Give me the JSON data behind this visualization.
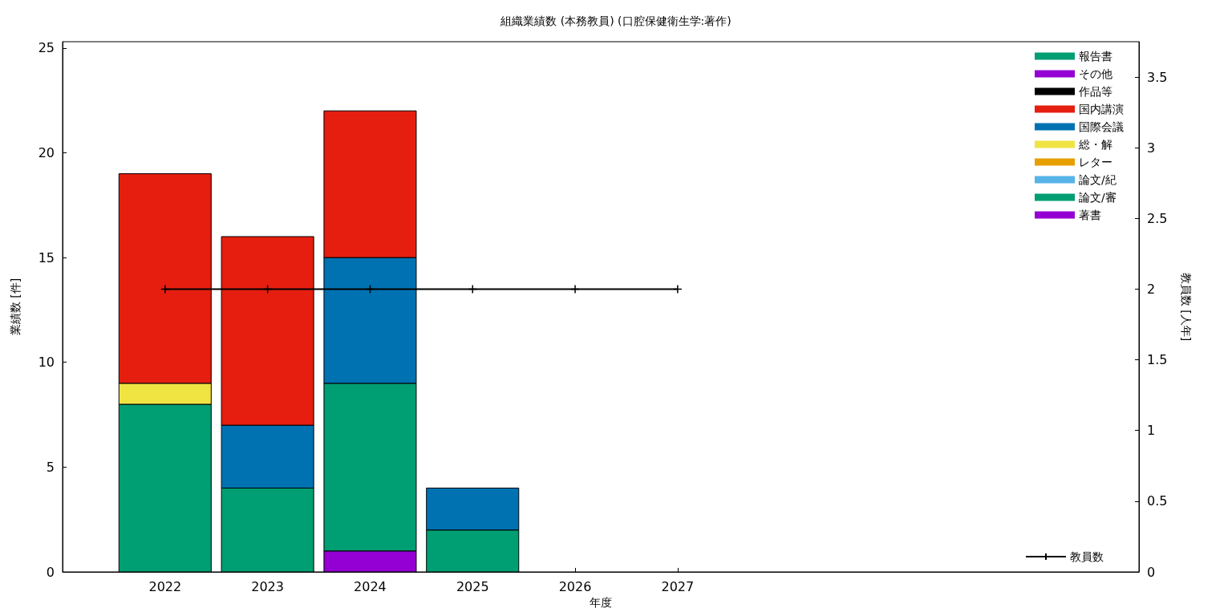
{
  "chart_data": {
    "type": "bar",
    "title": "組織業績数 (本務教員) (口腔保健衛生学:著作)",
    "xlabel": "年度",
    "ylabel": "業績数 [件]",
    "y2label": "教員数 [人年]",
    "x": [
      2022,
      2023,
      2024,
      2025,
      2026,
      2027
    ],
    "xlim": [
      2021,
      2031.5
    ],
    "xticks": [
      2022,
      2023,
      2024,
      2025,
      2026,
      2027
    ],
    "ylim": [
      0,
      25.3
    ],
    "yticks": [
      0,
      5,
      10,
      15,
      20,
      25
    ],
    "y2lim": [
      0,
      3.75
    ],
    "y2ticks": [
      0,
      0.5,
      1,
      1.5,
      2,
      2.5,
      3,
      3.5
    ],
    "stacked": true,
    "legend": "top right",
    "grid": false,
    "series": [
      {
        "name": "著書",
        "color": "#9400d3",
        "values": [
          0,
          0,
          1,
          0,
          0,
          0
        ]
      },
      {
        "name": "論文/審",
        "color": "#009e73",
        "values": [
          8,
          4,
          8,
          2,
          0,
          0
        ]
      },
      {
        "name": "論文/紀",
        "color": "#56b4e9",
        "values": [
          0,
          0,
          0,
          0,
          0,
          0
        ]
      },
      {
        "name": "レター",
        "color": "#e69f00",
        "values": [
          0,
          0,
          0,
          0,
          0,
          0
        ]
      },
      {
        "name": "総・解",
        "color": "#f0e442",
        "values": [
          1,
          0,
          0,
          0,
          0,
          0
        ]
      },
      {
        "name": "国際会議",
        "color": "#0072b2",
        "values": [
          0,
          3,
          6,
          2,
          0,
          0
        ]
      },
      {
        "name": "国内講演",
        "color": "#e51e10",
        "values": [
          10,
          9,
          7,
          0,
          0,
          0
        ]
      },
      {
        "name": "作品等",
        "color": "#000000",
        "values": [
          0,
          0,
          0,
          0,
          0,
          0
        ]
      },
      {
        "name": "その他",
        "color": "#9400d3",
        "values": [
          0,
          0,
          0,
          0,
          0,
          0
        ]
      },
      {
        "name": "報告書",
        "color": "#009e73",
        "values": [
          0,
          0,
          0,
          0,
          0,
          0
        ]
      },
      {
        "name": "教員数",
        "type": "line",
        "axis": "y2",
        "color": "#000000",
        "marker": "cross",
        "line_style": "solid",
        "values": [
          2,
          2,
          2,
          2,
          2,
          2
        ]
      }
    ]
  }
}
